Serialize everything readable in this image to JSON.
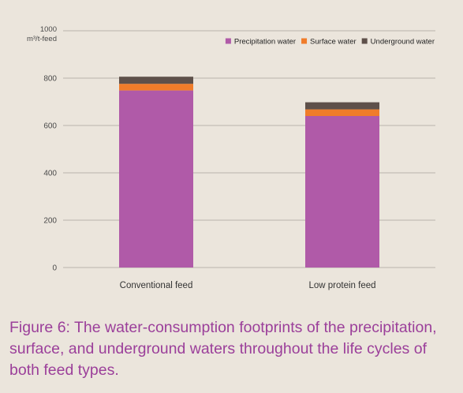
{
  "chart_data": {
    "type": "bar",
    "stacked": true,
    "y_unit_value": "1000",
    "y_unit_label": "m³/t-feed",
    "categories": [
      "Conventional feed",
      "Low protein feed"
    ],
    "series": [
      {
        "name": "Precipitation water",
        "color": "#b05aa8",
        "values": [
          748,
          640
        ]
      },
      {
        "name": "Surface water",
        "color": "#f07c2a",
        "values": [
          28,
          28
        ]
      },
      {
        "name": "Underground water",
        "color": "#5e504a",
        "values": [
          30,
          30
        ]
      }
    ],
    "yticks": [
      0,
      200,
      400,
      600,
      800
    ],
    "ylim": [
      0,
      1000
    ],
    "grid": true,
    "legend_position": "top-right"
  },
  "caption": "Figure 6: The water-consumption footprints of the precipitation, surface, and underground waters throughout the life cycles of both feed types."
}
